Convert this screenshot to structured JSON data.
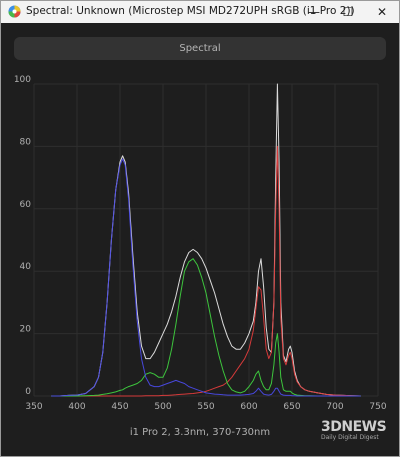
{
  "window": {
    "title": "Spectral: Unknown (Microstep MSI MD272UPH sRGB (i1 Pro 2))",
    "minimize_label": "—",
    "maximize_label": "☐",
    "close_label": "✕",
    "icon": "colorful-circle-icon"
  },
  "toolbar": {
    "tab_label": "Spectral"
  },
  "caption": "i1 Pro 2, 3.3nm, 370-730nm",
  "watermark": {
    "logo": "3DNEWS",
    "sub": "Daily Digital Digest"
  },
  "colors": {
    "white": "#e6e6e6",
    "red": "#e03c3c",
    "green": "#3fcf3f",
    "blue": "#4a4ae6",
    "background": "#1e1e1e",
    "grid": "#2e2e2e",
    "axis_text": "#b0b0b0"
  },
  "chart_data": {
    "type": "line",
    "xlim": [
      350,
      750
    ],
    "ylim": [
      0,
      100
    ],
    "xticks": [
      350,
      400,
      450,
      500,
      550,
      600,
      650,
      700,
      750
    ],
    "yticks": [
      0,
      20,
      40,
      60,
      80,
      100
    ],
    "x": [
      370,
      380,
      390,
      400,
      410,
      420,
      425,
      430,
      435,
      440,
      445,
      450,
      453,
      456,
      460,
      465,
      470,
      475,
      480,
      485,
      490,
      495,
      500,
      505,
      510,
      515,
      520,
      525,
      530,
      535,
      540,
      545,
      550,
      555,
      560,
      565,
      570,
      575,
      580,
      585,
      590,
      595,
      600,
      605,
      608,
      611,
      614,
      617,
      620,
      623,
      626,
      629,
      631,
      633,
      635,
      637,
      640,
      643,
      646,
      648,
      650,
      653,
      656,
      660,
      665,
      670,
      680,
      690,
      700,
      710,
      720,
      730
    ],
    "series": [
      {
        "color": "white",
        "values": [
          0,
          0,
          0.2,
          0.3,
          0.8,
          3,
          6,
          14,
          30,
          50,
          66,
          75,
          77,
          75,
          65,
          45,
          27,
          16,
          12,
          12,
          14,
          17,
          20,
          23,
          27,
          32,
          38,
          43,
          46,
          47,
          46,
          44,
          41,
          37,
          33,
          28,
          23,
          19,
          16,
          15,
          15,
          17,
          20,
          24,
          30,
          40,
          44,
          35,
          22,
          15,
          14,
          30,
          70,
          100,
          75,
          30,
          13,
          11,
          15,
          16,
          14,
          8,
          5,
          3,
          2,
          1.5,
          1,
          0.5,
          0.3,
          0.2,
          0.1,
          0
        ]
      },
      {
        "color": "red",
        "values": [
          0,
          0,
          0,
          0,
          0,
          0,
          0,
          0,
          0,
          0,
          0,
          0,
          0,
          0,
          0,
          0,
          0,
          0,
          0.1,
          0.1,
          0.1,
          0.1,
          0.2,
          0.2,
          0.3,
          0.4,
          0.5,
          0.6,
          0.7,
          0.8,
          1,
          1.2,
          1.5,
          2,
          2.5,
          3,
          3.5,
          4.5,
          6,
          8,
          10,
          12,
          15,
          21,
          28,
          35,
          34,
          25,
          15,
          12,
          14,
          30,
          60,
          80,
          60,
          25,
          12,
          10,
          13,
          14,
          12,
          7,
          4.5,
          3,
          2,
          1.5,
          1,
          0.5,
          0.3,
          0.2,
          0.1,
          0
        ]
      },
      {
        "color": "green",
        "values": [
          0,
          0,
          0,
          0,
          0.1,
          0.2,
          0.3,
          0.5,
          0.7,
          1,
          1.3,
          1.8,
          2,
          2.5,
          3,
          3.5,
          4,
          5,
          7,
          7.5,
          7,
          6,
          6,
          9,
          15,
          23,
          32,
          40,
          43,
          44,
          42,
          38,
          33,
          26,
          19,
          13,
          8,
          4,
          2,
          1.3,
          1,
          1.5,
          3,
          5,
          7,
          8,
          5,
          3,
          2,
          2,
          4,
          10,
          17,
          20,
          14,
          6,
          2,
          1.5,
          1.5,
          1.5,
          1,
          0.5,
          0.3,
          0.2,
          0.1,
          0.1,
          0,
          0,
          0,
          0,
          0,
          0
        ]
      },
      {
        "color": "blue",
        "values": [
          0,
          0,
          0.2,
          0.3,
          0.8,
          3,
          6,
          14,
          30,
          50,
          66,
          74,
          76,
          74,
          63,
          42,
          24,
          12,
          6,
          3.5,
          3,
          3,
          3.5,
          4,
          4.5,
          5,
          4.5,
          4,
          3,
          2.5,
          2,
          1.5,
          1,
          0.8,
          0.6,
          0.5,
          0.4,
          0.3,
          0.3,
          0.3,
          0.3,
          0.4,
          0.5,
          0.8,
          1.5,
          2.5,
          1.5,
          0.6,
          0.4,
          0.3,
          0.5,
          1.5,
          2.5,
          2.5,
          1.5,
          0.6,
          0.3,
          0.2,
          0.2,
          0.2,
          0.1,
          0.1,
          0,
          0,
          0,
          0,
          0,
          0,
          0,
          0,
          0,
          0
        ]
      }
    ]
  }
}
